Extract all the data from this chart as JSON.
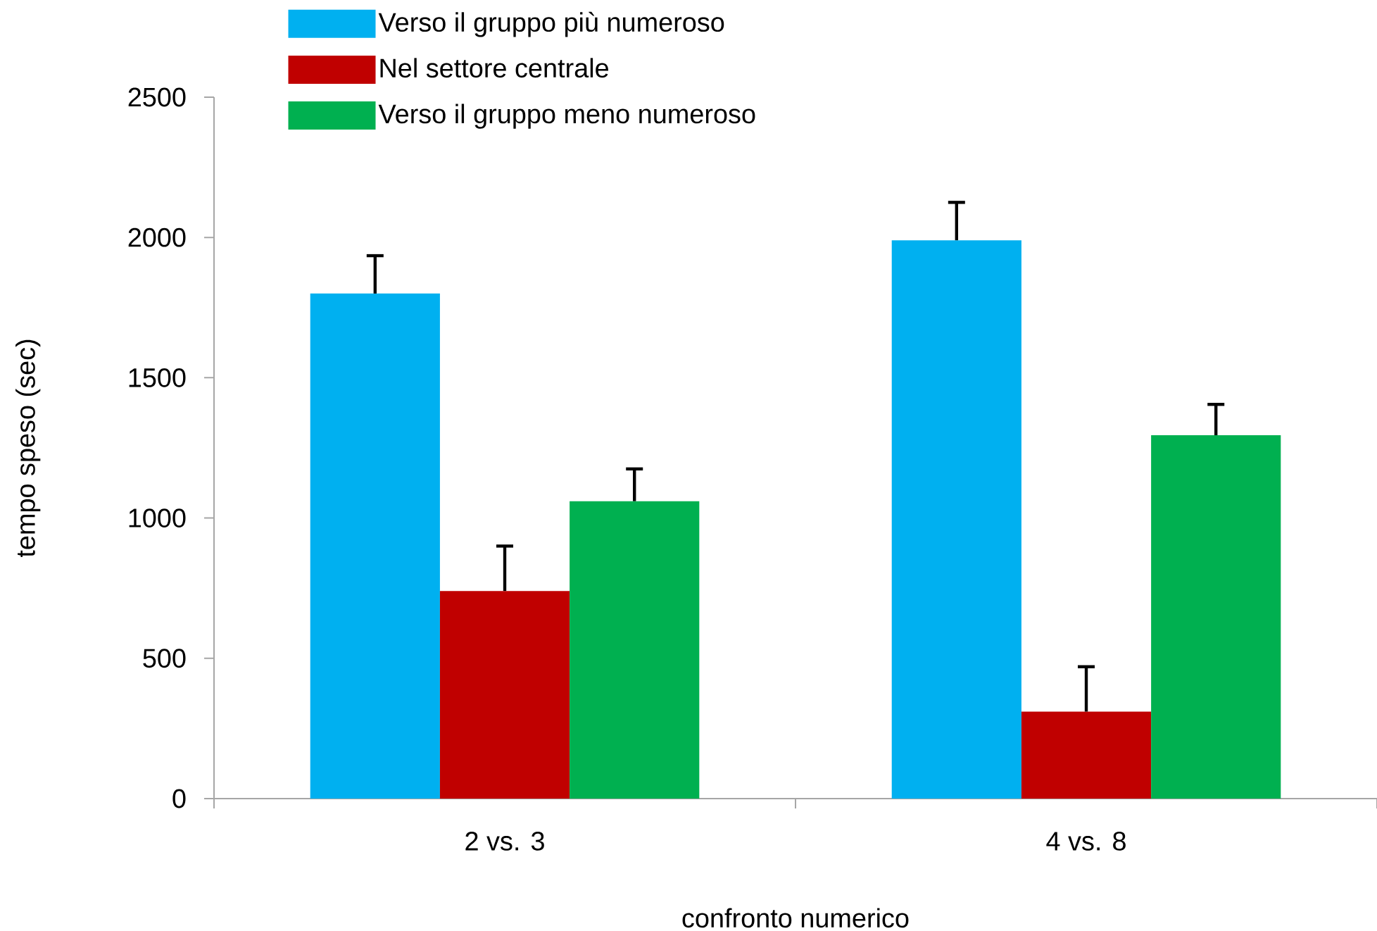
{
  "chart_data": {
    "type": "bar",
    "xlabel": "confronto numerico",
    "ylabel": "tempo speso (sec)",
    "categories": [
      "2 vs. 3",
      "4 vs. 8"
    ],
    "series": [
      {
        "name": "Verso il gruppo più numeroso",
        "color": "#00b0f0",
        "values": [
          1800,
          1990
        ],
        "errors": [
          [
            1800,
            1935
          ],
          [
            1990,
            2125
          ]
        ]
      },
      {
        "name": "Nel settore centrale",
        "color": "#c00000",
        "values": [
          740,
          310
        ],
        "errors": [
          [
            740,
            900
          ],
          [
            310,
            470
          ]
        ]
      },
      {
        "name": "Verso il gruppo meno numeroso",
        "color": "#00b050",
        "values": [
          1060,
          1295
        ],
        "errors": [
          [
            1060,
            1175
          ],
          [
            1295,
            1405
          ]
        ]
      }
    ],
    "ylim": [
      0,
      2500
    ],
    "yticks": [
      0,
      500,
      1000,
      1500,
      2000,
      2500
    ],
    "grid": false,
    "legend": "top"
  }
}
